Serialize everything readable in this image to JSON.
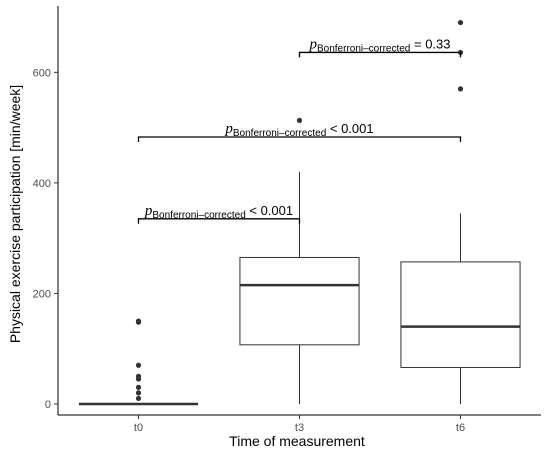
{
  "chart_data": {
    "type": "box",
    "xlabel": "Time of measurement",
    "ylabel": "Physical exercise participation [min/week]",
    "ylim": [
      -20,
      720
    ],
    "yticks": [
      0,
      200,
      400,
      600
    ],
    "categories": [
      "t0",
      "t3",
      "t6"
    ],
    "boxes": [
      {
        "category": "t0",
        "q1": 0,
        "median": 0,
        "q3": 0,
        "whisker_low": 0,
        "whisker_high": 0,
        "outliers": [
          10,
          20,
          30,
          45,
          50,
          70,
          148,
          150
        ]
      },
      {
        "category": "t3",
        "q1": 107,
        "median": 215,
        "q3": 265,
        "whisker_low": 0,
        "whisker_high": 420,
        "outliers": [
          513
        ]
      },
      {
        "category": "t6",
        "q1": 66,
        "median": 140,
        "q3": 257,
        "whisker_low": 0,
        "whisker_high": 345,
        "outliers": [
          570,
          636,
          690
        ]
      }
    ],
    "annotations": [
      {
        "from": "t0",
        "to": "t3",
        "y": 335,
        "p_symbol": "p",
        "subscript": "Bonferroni–corrected",
        "relation": " < 0.001"
      },
      {
        "from": "t0",
        "to": "t6",
        "y": 483,
        "p_symbol": "p",
        "subscript": "Bonferroni–corrected",
        "relation": " < 0.001"
      },
      {
        "from": "t3",
        "to": "t6",
        "y": 636,
        "p_symbol": "p",
        "subscript": "Bonferroni–corrected",
        "relation": " = 0.33"
      }
    ]
  }
}
